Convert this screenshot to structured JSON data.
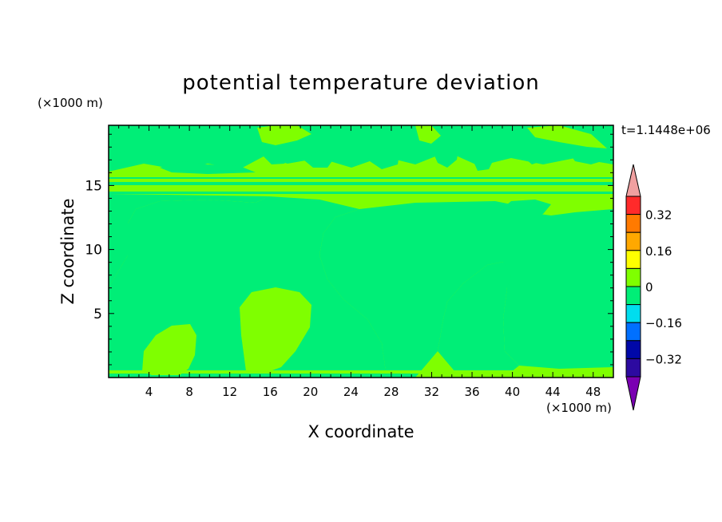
{
  "chart_data": {
    "type": "heatmap",
    "title": "potential temperature deviation",
    "xlabel": "X coordinate",
    "ylabel": "Z coordinate",
    "x_unit": "(×1000 m)",
    "y_unit": "(×1000 m)",
    "time_label": "t=1.1448e+06",
    "xlim": [
      0,
      50
    ],
    "ylim": [
      0,
      19.7
    ],
    "xticks": [
      "4",
      "8",
      "12",
      "16",
      "20",
      "24",
      "28",
      "32",
      "36",
      "40",
      "44",
      "48"
    ],
    "yticks": [
      "5",
      "10",
      "15"
    ],
    "colorbar": {
      "levels": [
        "0.32",
        "0.16",
        "0",
        "-0.16",
        "-0.32"
      ],
      "display_levels": [
        "0.32",
        "0.16",
        "0",
        "−0.16",
        "−0.32"
      ],
      "colors": [
        "#f0a0a0",
        "#ff2a2a",
        "#ff7a00",
        "#ffa800",
        "#ffff00",
        "#7fff00",
        "#00ee77",
        "#00ddee",
        "#0070ff",
        "#0008a8",
        "#2c0aa0",
        "#7a00b2"
      ],
      "background_color": "#00ee77",
      "positive_color": "#7fff00"
    },
    "regions": [
      {
        "sign": "positive",
        "description": "anomaly near x=4-8, low levels"
      },
      {
        "sign": "positive",
        "description": "anomaly near x=13-19, low levels"
      },
      {
        "sign": "positive",
        "description": "large anomaly x=21-50, mid levels"
      },
      {
        "sign": "positive",
        "description": "layer z=12-17 across domain"
      }
    ]
  }
}
